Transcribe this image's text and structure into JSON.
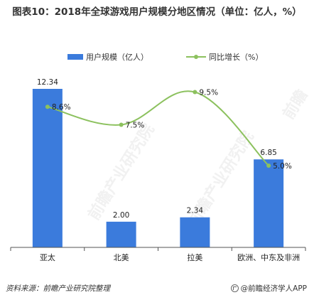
{
  "title": "图表10：2018年全球游戏用户规模分地区情况（单位：亿人，%）",
  "legend": {
    "bar_label": "用户规模（亿人）",
    "line_label": "同比增长（%）"
  },
  "footer": {
    "source": "资料来源：前瞻产业研究院整理",
    "brand": "@前瞻经济学人APP"
  },
  "watermarks": [
    "前瞻产业研究院",
    "前瞻产业研究院",
    "前瞻"
  ],
  "colors": {
    "bar": "#3b7bdc",
    "line": "#8cc15e",
    "axis": "#555555"
  },
  "chart_data": {
    "type": "bar",
    "categories": [
      "亚太",
      "北美",
      "拉美",
      "欧洲、中东及非洲"
    ],
    "series": [
      {
        "name": "用户规模（亿人）",
        "type": "bar",
        "values": [
          12.34,
          2.0,
          2.34,
          6.85
        ],
        "labels": [
          "12.34",
          "2.00",
          "2.34",
          "6.85"
        ]
      },
      {
        "name": "同比增长（%）",
        "type": "line",
        "values": [
          8.6,
          7.5,
          9.5,
          5.0
        ],
        "labels": [
          "8.6%",
          "7.5%",
          "9.5%",
          "5.0%"
        ]
      }
    ],
    "y_bar_range": [
      0,
      14
    ],
    "y_line_range": [
      0,
      11
    ],
    "grid": false,
    "legend_position": "top"
  }
}
